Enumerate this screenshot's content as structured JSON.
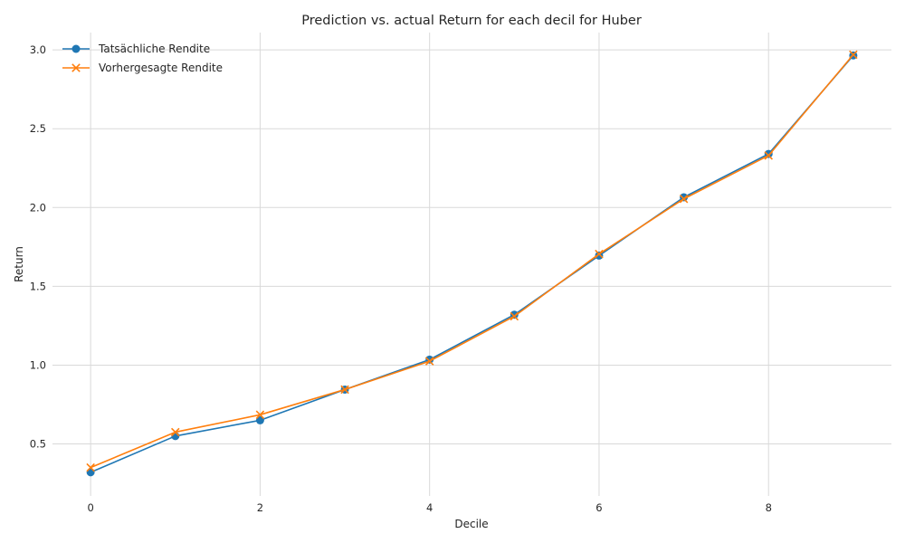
{
  "chart_data": {
    "type": "line",
    "title": "Prediction vs. actual Return for each decil for Huber",
    "xlabel": "Decile",
    "ylabel": "Return",
    "x": [
      0,
      1,
      2,
      3,
      4,
      5,
      6,
      7,
      8,
      9
    ],
    "xlim": [
      -0.45,
      9.45
    ],
    "ylim": [
      0.17,
      3.11
    ],
    "xticks": [
      0,
      2,
      4,
      6,
      8
    ],
    "xtick_labels": [
      "0",
      "2",
      "4",
      "6",
      "8"
    ],
    "yticks": [
      0.5,
      1.0,
      1.5,
      2.0,
      2.5,
      3.0
    ],
    "ytick_labels": [
      "0.5",
      "1.0",
      "1.5",
      "2.0",
      "2.5",
      "3.0"
    ],
    "grid": true,
    "legend_position": "top-left",
    "series": [
      {
        "name": "Tatsächliche Rendite",
        "values": [
          0.32,
          0.55,
          0.65,
          0.845,
          1.035,
          1.32,
          1.695,
          2.065,
          2.34,
          2.965
        ],
        "color": "#1f77b4",
        "marker": "circle"
      },
      {
        "name": "Vorhergesagte Rendite",
        "values": [
          0.35,
          0.575,
          0.685,
          0.845,
          1.025,
          1.31,
          1.705,
          2.055,
          2.33,
          2.97
        ],
        "color": "#ff7f0e",
        "marker": "x"
      }
    ]
  }
}
